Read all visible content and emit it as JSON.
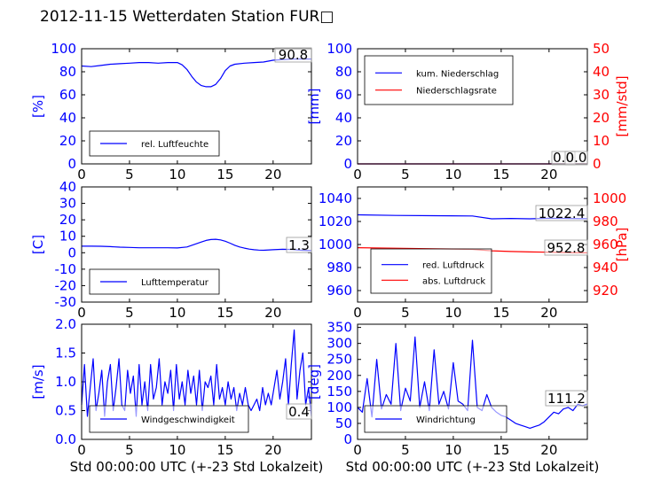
{
  "figure_title": "2012-11-15 Wetterdaten Station FUR□",
  "colors": {
    "blue": "#0000ff",
    "red": "#ff0000",
    "black": "#000000",
    "light_blue": "#7f7fff"
  },
  "chart_data": [
    {
      "type": "line",
      "panel": "top-left",
      "xlim": [
        0,
        24
      ],
      "xticks": [
        0,
        5,
        10,
        15,
        20
      ],
      "ylim": [
        0,
        100
      ],
      "yticks": [
        0,
        20,
        40,
        60,
        80,
        100
      ],
      "ylabel": "[%]",
      "xlabel": "",
      "current_value": "90.8",
      "legend_position": "lower-left",
      "series": [
        {
          "name": "rel. Luftfeuchte",
          "color": "#0000ff",
          "x": [
            0,
            1,
            2,
            3,
            4,
            5,
            6,
            7,
            8,
            9,
            10,
            10.5,
            11,
            11.5,
            12,
            12.5,
            13,
            13.5,
            14,
            14.5,
            15,
            15.5,
            16,
            17,
            18,
            19,
            20,
            21,
            22,
            23,
            24
          ],
          "y": [
            85,
            84.5,
            85.5,
            86.5,
            87,
            87.5,
            88,
            88,
            87.5,
            88,
            88,
            86,
            82,
            76,
            71,
            68,
            67,
            67,
            69,
            74,
            81,
            85,
            86.5,
            87.5,
            88,
            88.5,
            90,
            90.5,
            91,
            91,
            91
          ]
        }
      ]
    },
    {
      "type": "line",
      "panel": "top-right",
      "xlim": [
        0,
        24
      ],
      "xticks": [
        0,
        5,
        10,
        15,
        20
      ],
      "ylim": [
        0,
        100
      ],
      "yticks": [
        0,
        20,
        40,
        60,
        80,
        100
      ],
      "ylabel": "[mm]",
      "y2lim": [
        0,
        50
      ],
      "y2ticks": [
        0,
        10,
        20,
        30,
        40,
        50
      ],
      "y2label": "[mm/std]",
      "xlabel": "",
      "current_value_left": "0.0",
      "current_value_right": "0.0",
      "legend_position": "upper-left",
      "series": [
        {
          "name": "kum. Niederschlag",
          "color": "#0000ff",
          "x": [
            0,
            24
          ],
          "y": [
            0,
            0
          ]
        },
        {
          "name": "Niederschlagsrate",
          "color": "#ff0000",
          "x": [
            0,
            24
          ],
          "y": [
            0,
            0
          ]
        }
      ]
    },
    {
      "type": "line",
      "panel": "middle-left",
      "xlim": [
        0,
        24
      ],
      "xticks": [
        0,
        5,
        10,
        15,
        20
      ],
      "ylim": [
        -30,
        40
      ],
      "yticks": [
        -30,
        -20,
        -10,
        0,
        10,
        20,
        30,
        40
      ],
      "ylabel": "[C]",
      "xlabel": "",
      "current_value": "1.3",
      "legend_position": "lower-left",
      "series": [
        {
          "name": "Lufttemperatur",
          "color": "#0000ff",
          "x": [
            0,
            1,
            2,
            3,
            4,
            5,
            6,
            7,
            8,
            9,
            10,
            11,
            12,
            12.5,
            13,
            13.5,
            14,
            14.5,
            15,
            15.5,
            16,
            16.5,
            17,
            17.5,
            18,
            18.5,
            19,
            20,
            21,
            22,
            23,
            24
          ],
          "y": [
            4,
            4,
            3.9,
            3.7,
            3.4,
            3.2,
            3,
            3,
            3,
            3,
            2.9,
            3.5,
            5.5,
            6.5,
            7.5,
            8,
            8.2,
            7.8,
            7,
            5.8,
            4.5,
            3.5,
            2.8,
            2.2,
            1.8,
            1.6,
            1.5,
            1.8,
            2.1,
            2,
            1.5,
            1.3
          ]
        }
      ]
    },
    {
      "type": "line",
      "panel": "middle-right",
      "xlim": [
        0,
        24
      ],
      "xticks": [
        0,
        5,
        10,
        15,
        20
      ],
      "ylim": [
        950,
        1050
      ],
      "yticks": [
        960,
        980,
        1000,
        1020,
        1040
      ],
      "ylabel": "",
      "y2lim": [
        910,
        1010
      ],
      "y2ticks": [
        920,
        940,
        960,
        980,
        1000
      ],
      "y2label": "[hPa]",
      "xlabel": "",
      "current_value_left": "1022.4",
      "current_value_right": "952.8",
      "legend_position": "lower-left",
      "series": [
        {
          "name": "red. Luftdruck",
          "color": "#0000ff",
          "axis": "left",
          "x": [
            0,
            4,
            8,
            12,
            14,
            16,
            18,
            20,
            22,
            24
          ],
          "y": [
            1025.8,
            1025.2,
            1025,
            1024.8,
            1022.3,
            1022.6,
            1022.3,
            1022.8,
            1022.6,
            1022.4
          ]
        },
        {
          "name": "abs. Luftdruck",
          "color": "#ff0000",
          "axis": "right",
          "x": [
            0,
            4,
            8,
            12,
            14,
            16,
            18,
            20,
            22,
            24
          ],
          "y": [
            957.2,
            956.8,
            956.3,
            955.8,
            954.5,
            953.9,
            953.5,
            953.3,
            953,
            952.8
          ]
        }
      ]
    },
    {
      "type": "line",
      "panel": "bottom-left",
      "xlim": [
        0,
        24
      ],
      "xticks": [
        0,
        5,
        10,
        15,
        20
      ],
      "ylim": [
        0,
        2.0
      ],
      "yticks": [
        0.0,
        0.5,
        1.0,
        1.5,
        2.0
      ],
      "ylabel": "[m/s]",
      "xlabel": "Std 00:00:00 UTC (+-23 Std Lokalzeit)",
      "current_value": "0.4",
      "legend_position": "lower-center",
      "series": [
        {
          "name": "Windgeschwindigkeit",
          "color": "#0000ff",
          "x": [
            0,
            0.3,
            0.6,
            0.9,
            1.2,
            1.5,
            1.8,
            2.1,
            2.4,
            2.7,
            3,
            3.3,
            3.6,
            3.9,
            4.2,
            4.5,
            4.8,
            5.1,
            5.4,
            5.7,
            6,
            6.3,
            6.6,
            6.9,
            7.2,
            7.5,
            7.8,
            8.1,
            8.4,
            8.7,
            9,
            9.3,
            9.6,
            9.9,
            10.2,
            10.5,
            10.8,
            11.1,
            11.4,
            11.7,
            12,
            12.3,
            12.6,
            12.9,
            13.2,
            13.5,
            13.8,
            14.1,
            14.4,
            14.7,
            15,
            15.3,
            15.6,
            15.9,
            16.2,
            16.5,
            16.8,
            17.1,
            17.4,
            17.7,
            18,
            18.3,
            18.6,
            18.9,
            19.2,
            19.5,
            19.8,
            20.1,
            20.4,
            20.7,
            21,
            21.3,
            21.6,
            21.9,
            22.2,
            22.5,
            22.8,
            23.1,
            23.4,
            23.7,
            24
          ],
          "y": [
            0.6,
            1.3,
            0.4,
            0.9,
            1.4,
            0.5,
            0.8,
            1.2,
            0.4,
            1.0,
            1.3,
            0.5,
            0.9,
            1.4,
            0.6,
            0.5,
            1.2,
            0.8,
            1.1,
            0.4,
            1.3,
            0.6,
            1.0,
            0.5,
            1.3,
            0.7,
            0.9,
            1.4,
            0.6,
            1.0,
            0.8,
            1.2,
            0.5,
            1.3,
            0.7,
            1.0,
            0.6,
            1.2,
            0.8,
            1.1,
            0.6,
            1.2,
            0.5,
            1.0,
            0.9,
            1.1,
            0.6,
            1.3,
            0.7,
            0.9,
            0.6,
            1.0,
            0.7,
            0.9,
            0.5,
            0.8,
            0.6,
            0.9,
            0.6,
            0.5,
            0.6,
            0.7,
            0.5,
            0.9,
            0.6,
            0.8,
            0.6,
            0.9,
            1.2,
            0.7,
            1.0,
            1.4,
            0.6,
            1.3,
            1.9,
            0.7,
            1.2,
            1.5,
            0.6,
            0.9,
            0.4
          ]
        }
      ]
    },
    {
      "type": "line",
      "panel": "bottom-right",
      "xlim": [
        0,
        24
      ],
      "xticks": [
        0,
        5,
        10,
        15,
        20
      ],
      "ylim": [
        0,
        360
      ],
      "yticks": [
        0,
        50,
        100,
        150,
        200,
        250,
        300,
        350
      ],
      "ylabel": "[deg]",
      "xlabel": "Std 00:00:00 UTC (+-23 Std Lokalzeit)",
      "current_value": "111.2",
      "legend_position": "lower-left",
      "series": [
        {
          "name": "Windrichtung",
          "color": "#0000ff",
          "x": [
            0,
            0.5,
            1,
            1.5,
            2,
            2.5,
            3,
            3.5,
            4,
            4.5,
            5,
            5.5,
            6,
            6.5,
            7,
            7.5,
            8,
            8.5,
            9,
            9.5,
            10,
            10.5,
            11,
            11.5,
            12,
            12.5,
            13,
            13.5,
            14,
            14.5,
            15,
            15.5,
            16,
            16.5,
            17,
            17.5,
            18,
            18.5,
            19,
            19.5,
            20,
            20.5,
            21,
            21.5,
            22,
            22.5,
            23,
            23.5,
            24
          ],
          "y": [
            100,
            85,
            190,
            70,
            250,
            95,
            140,
            110,
            300,
            90,
            160,
            120,
            320,
            100,
            180,
            90,
            280,
            110,
            150,
            95,
            240,
            120,
            110,
            90,
            310,
            100,
            90,
            140,
            100,
            85,
            75,
            70,
            60,
            50,
            45,
            40,
            35,
            40,
            45,
            55,
            70,
            85,
            80,
            95,
            100,
            90,
            110,
            105,
            111
          ]
        }
      ]
    }
  ]
}
